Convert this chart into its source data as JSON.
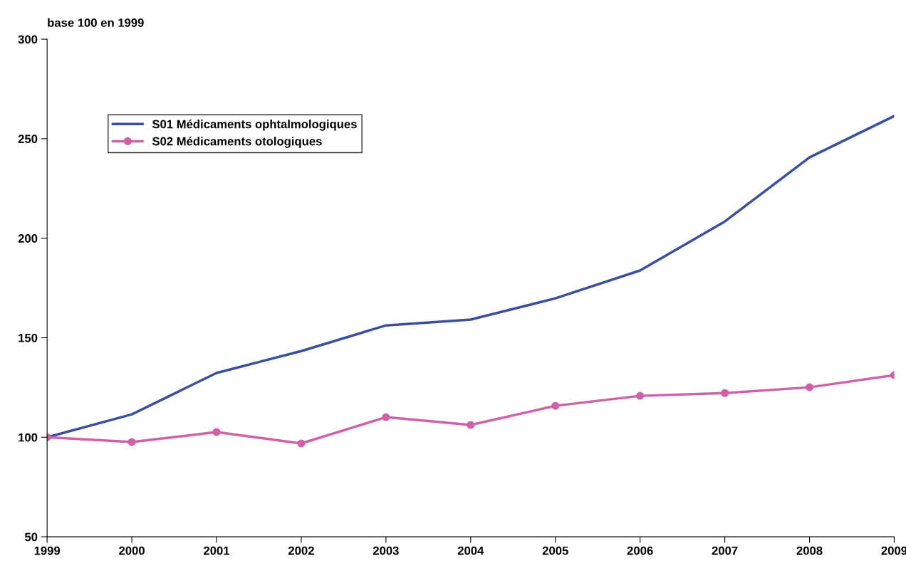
{
  "chart_data": {
    "type": "line",
    "ylabel": "base 100 en 1999",
    "categories": [
      "1999",
      "2000",
      "2001",
      "2002",
      "2003",
      "2004",
      "2005",
      "2006",
      "2007",
      "2008",
      "2009"
    ],
    "series": [
      {
        "name": "S01 Médicaments ophtalmologiques",
        "color": "#3a4fa0",
        "marker": "none",
        "values": [
          100,
          111.5,
          132.3,
          143.3,
          156.2,
          159.1,
          169.8,
          183.8,
          208.4,
          240.6,
          261.4
        ]
      },
      {
        "name": "S02 Médicaments otologiques",
        "color": "#d060a8",
        "marker": "circle",
        "values": [
          100,
          97.6,
          102.6,
          96.9,
          110.1,
          106.2,
          115.8,
          120.8,
          122.2,
          125.1,
          131.2
        ]
      }
    ],
    "ylim": [
      50,
      300
    ],
    "yticks": [
      50,
      100,
      150,
      200,
      250,
      300
    ],
    "grid": false,
    "legend": "top left"
  }
}
